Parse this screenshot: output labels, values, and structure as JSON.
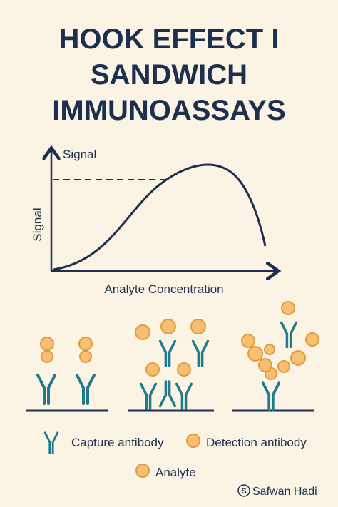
{
  "header": {
    "title_lines": [
      "HOOK EFFECT I",
      "SANDWICH",
      "IMMUNOASSAYS"
    ]
  },
  "graph": {
    "y_arrow_label": "Signal",
    "y_axis_label": "Signal",
    "x_axis_label": "Analyte Concentration"
  },
  "legend": {
    "items": [
      "Capture antibody",
      "Detection antibody",
      "Analyte"
    ]
  },
  "credit": {
    "logo": "S",
    "name": "Safwan Hadi"
  }
}
